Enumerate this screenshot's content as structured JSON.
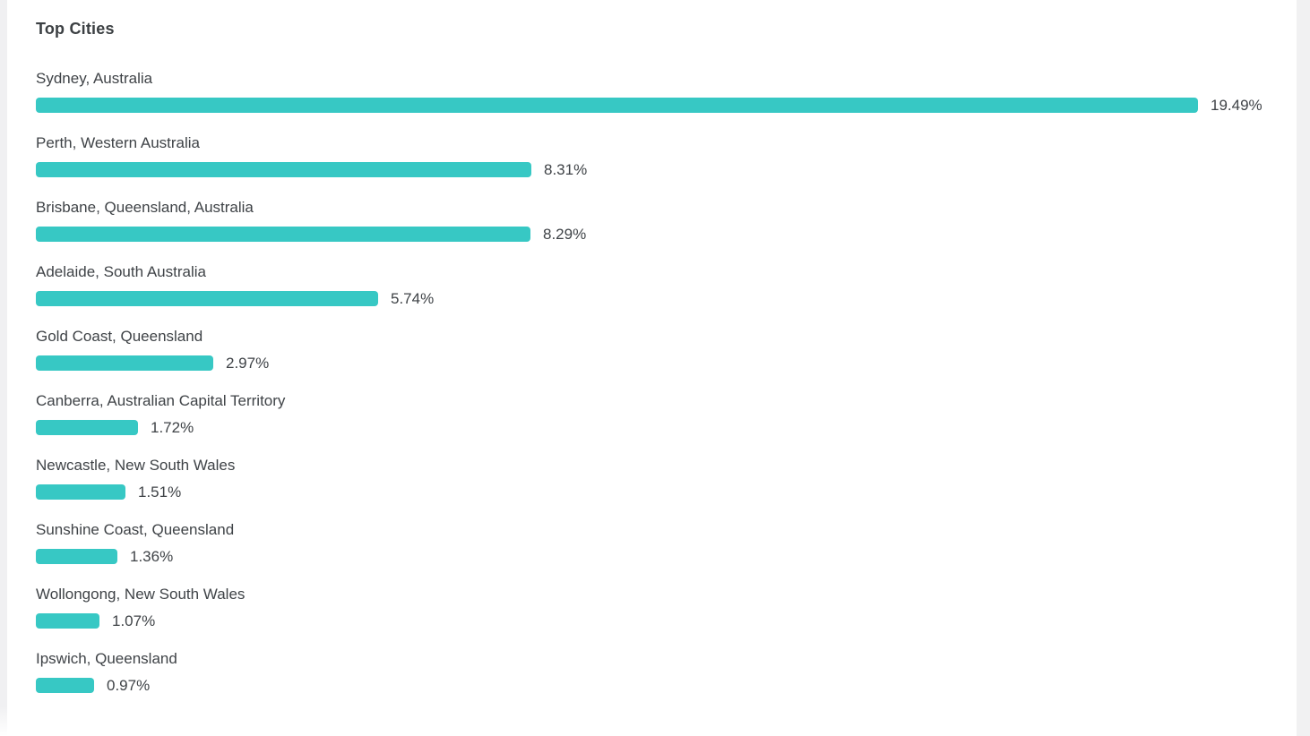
{
  "card": {
    "title": "Top Cities"
  },
  "colors": {
    "bar": "#37c8c4",
    "text": "#3c4043",
    "page_edge": "#f0f0f2",
    "card_background": "#ffffff"
  },
  "chart_data": {
    "type": "bar",
    "orientation": "horizontal",
    "title": "Top Cities",
    "unit": "%",
    "max_value": 19.49,
    "grid": false,
    "legend": false,
    "categories": [
      "Sydney, Australia",
      "Perth, Western Australia",
      "Brisbane, Queensland, Australia",
      "Adelaide, South Australia",
      "Gold Coast, Queensland",
      "Canberra, Australian Capital Territory",
      "Newcastle, New South Wales",
      "Sunshine Coast, Queensland",
      "Wollongong, New South Wales",
      "Ipswich, Queensland"
    ],
    "values": [
      19.49,
      8.31,
      8.29,
      5.74,
      2.97,
      1.72,
      1.51,
      1.36,
      1.07,
      0.97
    ],
    "value_labels": [
      "19.49%",
      "8.31%",
      "8.29%",
      "5.74%",
      "2.97%",
      "1.72%",
      "1.51%",
      "1.36%",
      "1.07%",
      "0.97%"
    ]
  }
}
